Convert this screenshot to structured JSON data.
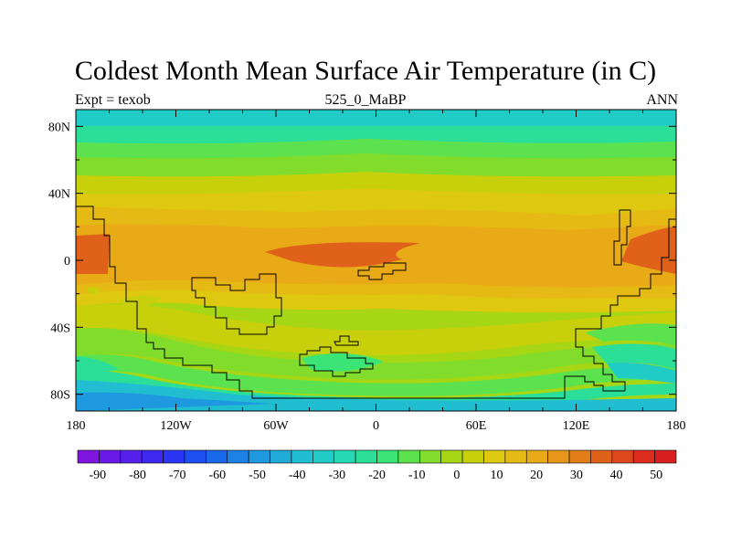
{
  "title": "Coldest Month Mean Surface Air Temperature (in C)",
  "subtitle_left": "Expt = texob",
  "subtitle_center": "525_0_MaBP",
  "subtitle_right": "ANN",
  "map": {
    "projection": "cylindrical equidistant",
    "lon_range": [
      -180,
      180
    ],
    "lat_range": [
      -90,
      90
    ],
    "x_ticks": [
      {
        "value": -180,
        "label": "180"
      },
      {
        "value": -120,
        "label": "120W"
      },
      {
        "value": -60,
        "label": "60W"
      },
      {
        "value": 0,
        "label": "0"
      },
      {
        "value": 60,
        "label": "60E"
      },
      {
        "value": 120,
        "label": "120E"
      },
      {
        "value": 180,
        "label": "180"
      }
    ],
    "y_ticks": [
      {
        "value": 80,
        "label": "80N"
      },
      {
        "value": 40,
        "label": "40N"
      },
      {
        "value": 0,
        "label": "0"
      },
      {
        "value": -40,
        "label": "40S"
      },
      {
        "value": -80,
        "label": "80S"
      }
    ]
  },
  "colorbar": {
    "labels": [
      "-90",
      "-80",
      "-70",
      "-60",
      "-50",
      "-40",
      "-30",
      "-20",
      "-10",
      "0",
      "10",
      "20",
      "30",
      "40",
      "50"
    ],
    "colors": [
      "#7f16e0",
      "#6a1ae6",
      "#5520ec",
      "#3f28f0",
      "#2a34f2",
      "#1c4ef0",
      "#1a68ec",
      "#1c82e6",
      "#1e98de",
      "#20acd6",
      "#20bed0",
      "#22ccc6",
      "#26d8b4",
      "#2cdf98",
      "#3ae476",
      "#5ce24e",
      "#82dc2c",
      "#a6d614",
      "#c8d00c",
      "#dec810",
      "#e6ba14",
      "#e8aa16",
      "#e69618",
      "#e47e18",
      "#e0621a",
      "#de461c",
      "#dc2c1e",
      "#d81e1e"
    ]
  }
}
